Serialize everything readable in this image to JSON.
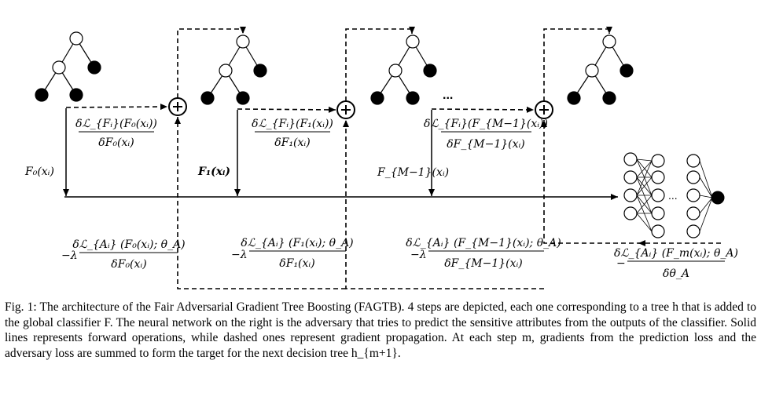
{
  "diagram": {
    "labels": {
      "f0": "F₀(xᵢ)",
      "f1": "F₁(xᵢ)",
      "fm1": "F_{M−1}(xᵢ)",
      "ellipsis": "...",
      "nn_ellipsis": "..."
    },
    "pred_grad": [
      {
        "num": "δℒ_{Fᵢ}(F₀(xᵢ))",
        "den": "δF₀(xᵢ)"
      },
      {
        "num": "δℒ_{Fᵢ}(F₁(xᵢ))",
        "den": "δF₁(xᵢ)"
      },
      {
        "num": "δℒ_{Fᵢ}(F_{M−1}(xᵢ))",
        "den": "δF_{M−1}(xᵢ)"
      }
    ],
    "adv_grad": [
      {
        "prefix": "−λ",
        "num": "δℒ_{Aᵢ} (F₀(xᵢ); θ_A)",
        "den": "δF₀(xᵢ)"
      },
      {
        "prefix": "−λ",
        "num": "δℒ_{Aᵢ} (F₁(xᵢ); θ_A)",
        "den": "δF₁(xᵢ)"
      },
      {
        "prefix": "−λ",
        "num": "δℒ_{Aᵢ} (F_{M−1}(xᵢ); θ_A)",
        "den": "δF_{M−1}(xᵢ)"
      },
      {
        "prefix": "−",
        "num": "δℒ_{Aᵢ} (F_m(xᵢ); θ_A)",
        "den": "δθ_A"
      }
    ]
  },
  "caption": {
    "text": "Fig. 1: The architecture of the Fair Adversarial Gradient Tree Boosting (FAGTB). 4 steps are depicted, each one corresponding to a tree h that is added to the global classifier F. The neural network on the right is the adversary that tries to predict the sensitive attributes from the outputs of the classifier. Solid lines represents forward operations, while dashed ones represent gradient propagation. At each step m, gradients from the prediction loss and the adversary loss are summed to form the target for the next decision tree h_{m+1}."
  }
}
